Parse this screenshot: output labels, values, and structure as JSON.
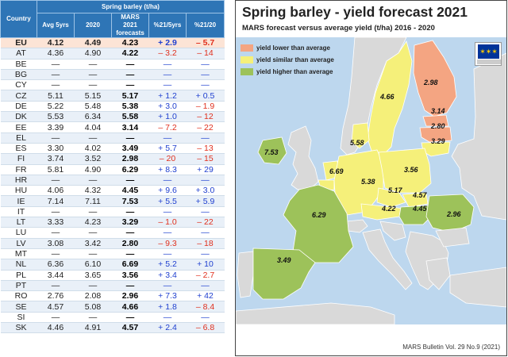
{
  "table": {
    "group_header": "Spring barley (t/ha)",
    "headers": {
      "country": "Country",
      "avg": "Avg 5yrs",
      "y2020": "2020",
      "forecast": [
        "MARS",
        "2021",
        "forecasts"
      ],
      "pct_avg": "%21/5yrs",
      "pct_2020": "%21/20"
    },
    "rows": [
      {
        "country": "EU",
        "avg": "4.12",
        "y2020": "4.49",
        "forecast": "4.23",
        "pct_avg": "+ 2.9",
        "pct_2020": "– 5.7"
      },
      {
        "country": "AT",
        "avg": "4.36",
        "y2020": "4.90",
        "forecast": "4.22",
        "pct_avg": "– 3.2",
        "pct_2020": "– 14"
      },
      {
        "country": "BE",
        "avg": "—",
        "y2020": "—",
        "forecast": "—",
        "pct_avg": "—",
        "pct_2020": "—"
      },
      {
        "country": "BG",
        "avg": "—",
        "y2020": "—",
        "forecast": "—",
        "pct_avg": "—",
        "pct_2020": "—"
      },
      {
        "country": "CY",
        "avg": "—",
        "y2020": "—",
        "forecast": "—",
        "pct_avg": "—",
        "pct_2020": "—"
      },
      {
        "country": "CZ",
        "avg": "5.11",
        "y2020": "5.15",
        "forecast": "5.17",
        "pct_avg": "+ 1.2",
        "pct_2020": "+ 0.5"
      },
      {
        "country": "DE",
        "avg": "5.22",
        "y2020": "5.48",
        "forecast": "5.38",
        "pct_avg": "+ 3.0",
        "pct_2020": "– 1.9"
      },
      {
        "country": "DK",
        "avg": "5.53",
        "y2020": "6.34",
        "forecast": "5.58",
        "pct_avg": "+ 1.0",
        "pct_2020": "– 12"
      },
      {
        "country": "EE",
        "avg": "3.39",
        "y2020": "4.04",
        "forecast": "3.14",
        "pct_avg": "– 7.2",
        "pct_2020": "– 22"
      },
      {
        "country": "EL",
        "avg": "—",
        "y2020": "—",
        "forecast": "—",
        "pct_avg": "—",
        "pct_2020": "—"
      },
      {
        "country": "ES",
        "avg": "3.30",
        "y2020": "4.02",
        "forecast": "3.49",
        "pct_avg": "+ 5.7",
        "pct_2020": "– 13"
      },
      {
        "country": "FI",
        "avg": "3.74",
        "y2020": "3.52",
        "forecast": "2.98",
        "pct_avg": "– 20",
        "pct_2020": "– 15"
      },
      {
        "country": "FR",
        "avg": "5.81",
        "y2020": "4.90",
        "forecast": "6.29",
        "pct_avg": "+ 8.3",
        "pct_2020": "+ 29"
      },
      {
        "country": "HR",
        "avg": "—",
        "y2020": "—",
        "forecast": "—",
        "pct_avg": "—",
        "pct_2020": "—"
      },
      {
        "country": "HU",
        "avg": "4.06",
        "y2020": "4.32",
        "forecast": "4.45",
        "pct_avg": "+ 9.6",
        "pct_2020": "+ 3.0"
      },
      {
        "country": "IE",
        "avg": "7.14",
        "y2020": "7.11",
        "forecast": "7.53",
        "pct_avg": "+ 5.5",
        "pct_2020": "+ 5.9"
      },
      {
        "country": "IT",
        "avg": "—",
        "y2020": "—",
        "forecast": "—",
        "pct_avg": "—",
        "pct_2020": "—"
      },
      {
        "country": "LT",
        "avg": "3.33",
        "y2020": "4.23",
        "forecast": "3.29",
        "pct_avg": "– 1.0",
        "pct_2020": "– 22"
      },
      {
        "country": "LU",
        "avg": "—",
        "y2020": "—",
        "forecast": "—",
        "pct_avg": "—",
        "pct_2020": "—"
      },
      {
        "country": "LV",
        "avg": "3.08",
        "y2020": "3.42",
        "forecast": "2.80",
        "pct_avg": "– 9.3",
        "pct_2020": "– 18"
      },
      {
        "country": "MT",
        "avg": "—",
        "y2020": "—",
        "forecast": "—",
        "pct_avg": "—",
        "pct_2020": "—"
      },
      {
        "country": "NL",
        "avg": "6.36",
        "y2020": "6.10",
        "forecast": "6.69",
        "pct_avg": "+ 5.2",
        "pct_2020": "+ 10"
      },
      {
        "country": "PL",
        "avg": "3.44",
        "y2020": "3.65",
        "forecast": "3.56",
        "pct_avg": "+ 3.4",
        "pct_2020": "– 2.7"
      },
      {
        "country": "PT",
        "avg": "—",
        "y2020": "—",
        "forecast": "—",
        "pct_avg": "—",
        "pct_2020": "—"
      },
      {
        "country": "RO",
        "avg": "2.76",
        "y2020": "2.08",
        "forecast": "2.96",
        "pct_avg": "+ 7.3",
        "pct_2020": "+ 42"
      },
      {
        "country": "SE",
        "avg": "4.57",
        "y2020": "5.08",
        "forecast": "4.66",
        "pct_avg": "+ 1.8",
        "pct_2020": "– 8.4"
      },
      {
        "country": "SI",
        "avg": "—",
        "y2020": "—",
        "forecast": "—",
        "pct_avg": "—",
        "pct_2020": "—"
      },
      {
        "country": "SK",
        "avg": "4.46",
        "y2020": "4.91",
        "forecast": "4.57",
        "pct_avg": "+ 2.4",
        "pct_2020": "– 6.8"
      }
    ]
  },
  "map": {
    "title": "Spring barley - yield forecast 2021",
    "subtitle": "MARS forecast versus average yield (t/ha) 2016 - 2020",
    "legend": [
      {
        "label": "yield lower than average",
        "color": "#f4a582"
      },
      {
        "label": "yield similar than average",
        "color": "#f5f07a"
      },
      {
        "label": "yield higher than average",
        "color": "#9dc25a"
      }
    ],
    "colors": {
      "sea": "#bdd7ee",
      "non_eu": "#d9d9d9",
      "lower": "#f4a582",
      "similar": "#f5f07a",
      "higher": "#9dc25a"
    },
    "country_values": {
      "SE": "4.66",
      "FI": "2.98",
      "EE": "3.14",
      "LV": "2.80",
      "LT": "3.29",
      "IE": "7.53",
      "DK": "5.58",
      "NL": "6.69",
      "DE": "5.38",
      "PL": "3.56",
      "CZ": "5.17",
      "SK": "4.57",
      "AT": "4.22",
      "HU": "4.45",
      "RO": "2.96",
      "FR": "6.29",
      "ES": "3.49"
    },
    "footer": "MARS Bulletin Vol. 29 No.9 (2021)"
  }
}
